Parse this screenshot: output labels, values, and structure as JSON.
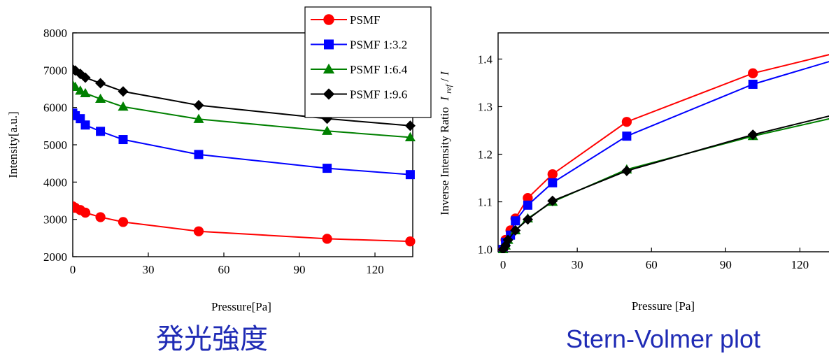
{
  "captions": {
    "left": "発光強度",
    "right": "Stern-Volmer plot",
    "color": "#1f2bb5"
  },
  "chart_data": [
    {
      "type": "line",
      "title": "",
      "xlabel": "Pressure[Pa]",
      "ylabel": "Intensity[a.u.]",
      "xlim": [
        0,
        135
      ],
      "ylim": [
        2000,
        8000
      ],
      "xticks": [
        0,
        30,
        60,
        90,
        120
      ],
      "yticks": [
        2000,
        3000,
        4000,
        5000,
        6000,
        7000,
        8000
      ],
      "grid": false,
      "legend": "top-right",
      "series": [
        {
          "name": "PSMF",
          "color": "#ff0000",
          "marker": "circle",
          "x": [
            0,
            1,
            3,
            5,
            11,
            20,
            50,
            101,
            134
          ],
          "y": [
            3350,
            3310,
            3250,
            3180,
            3060,
            2930,
            2680,
            2480,
            2410
          ]
        },
        {
          "name": "PSMF 1:3.2",
          "color": "#0000ff",
          "marker": "square",
          "x": [
            0,
            1,
            3,
            5,
            11,
            20,
            50,
            101,
            134
          ],
          "y": [
            5850,
            5780,
            5700,
            5530,
            5360,
            5140,
            4740,
            4370,
            4200
          ]
        },
        {
          "name": "PSMF 1:6.4",
          "color": "#008000",
          "marker": "triangle",
          "x": [
            0,
            1,
            3,
            5,
            11,
            20,
            50,
            101,
            134
          ],
          "y": [
            6600,
            6550,
            6450,
            6380,
            6230,
            6020,
            5690,
            5370,
            5200
          ]
        },
        {
          "name": "PSMF 1:9.6",
          "color": "#000000",
          "marker": "diamond",
          "x": [
            0,
            1,
            3,
            5,
            11,
            20,
            50,
            101,
            134
          ],
          "y": [
            7020,
            6990,
            6900,
            6800,
            6650,
            6430,
            6060,
            5700,
            5510
          ]
        }
      ]
    },
    {
      "type": "line",
      "title": "",
      "xlabel": "Pressure [Pa]",
      "ylabel": "Inverse Intensity Ratio",
      "ylabel_math": [
        "I",
        "ref",
        " /",
        "I"
      ],
      "xlim": [
        -2,
        136
      ],
      "ylim": [
        0.995,
        1.455
      ],
      "xticks": [
        0,
        30,
        60,
        90,
        120
      ],
      "yticks": [
        1.0,
        1.1,
        1.2,
        1.3,
        1.4
      ],
      "grid": false,
      "series": [
        {
          "name": "PSMF",
          "color": "#ff0000",
          "marker": "circle",
          "x": [
            0,
            1,
            3,
            5,
            10,
            20,
            50,
            101,
            134
          ],
          "y": [
            1.0,
            1.02,
            1.04,
            1.065,
            1.108,
            1.158,
            1.268,
            1.37,
            1.412
          ]
        },
        {
          "name": "PSMF 1:3.2",
          "color": "#0000ff",
          "marker": "square",
          "x": [
            0,
            1,
            3,
            5,
            10,
            20,
            50,
            101,
            134
          ],
          "y": [
            1.0,
            1.015,
            1.03,
            1.06,
            1.093,
            1.14,
            1.238,
            1.347,
            1.398
          ]
        },
        {
          "name": "PSMF 1:6.4",
          "color": "#008000",
          "marker": "triangle",
          "x": [
            0,
            1,
            2,
            5,
            10,
            20,
            50,
            101,
            134
          ],
          "y": [
            1.0,
            1.008,
            1.02,
            1.04,
            1.065,
            1.1,
            1.168,
            1.238,
            1.277
          ]
        },
        {
          "name": "PSMF 1:9.6",
          "color": "#000000",
          "marker": "diamond",
          "x": [
            0,
            1,
            2,
            5,
            10,
            20,
            50,
            101,
            134
          ],
          "y": [
            1.0,
            1.008,
            1.02,
            1.04,
            1.063,
            1.102,
            1.165,
            1.241,
            1.283
          ]
        }
      ]
    }
  ]
}
